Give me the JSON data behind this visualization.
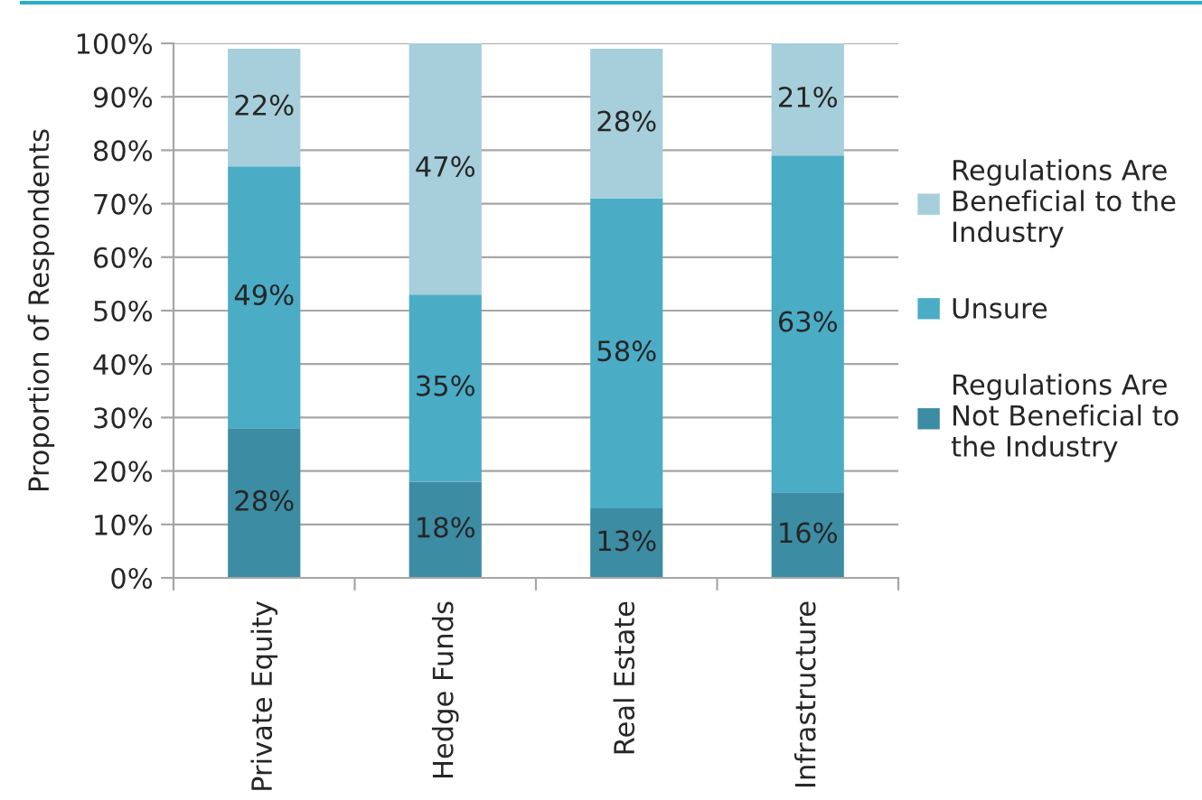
{
  "chart_data": {
    "type": "bar",
    "stacked": true,
    "ylabel": "Proportion of Respondents",
    "categories": [
      "Private Equity",
      "Hedge Funds",
      "Real Estate",
      "Infrastructure"
    ],
    "series": [
      {
        "name": "Regulations Are\nNot Beneficial to\nthe Industry",
        "color": "#3c8ca4",
        "values": [
          28,
          18,
          13,
          16
        ],
        "value_labels": [
          "28%",
          "18%",
          "13%",
          "16%"
        ]
      },
      {
        "name": "Unsure",
        "color": "#4bacc6",
        "values": [
          49,
          35,
          58,
          63
        ],
        "value_labels": [
          "49%",
          "35%",
          "58%",
          "63%"
        ]
      },
      {
        "name": "Regulations Are\nBeneficial to the\nIndustry",
        "color": "#a6cedb",
        "values": [
          22,
          47,
          28,
          21
        ],
        "value_labels": [
          "22%",
          "47%",
          "28%",
          "21%"
        ]
      }
    ],
    "ylim": [
      0,
      100
    ],
    "yticks": [
      {
        "value": 0,
        "label": "0%"
      },
      {
        "value": 10,
        "label": "10%"
      },
      {
        "value": 20,
        "label": "20%"
      },
      {
        "value": 30,
        "label": "30%"
      },
      {
        "value": 40,
        "label": "40%"
      },
      {
        "value": 50,
        "label": "50%"
      },
      {
        "value": 60,
        "label": "60%"
      },
      {
        "value": 70,
        "label": "70%"
      },
      {
        "value": 80,
        "label": "80%"
      },
      {
        "value": 90,
        "label": "90%"
      },
      {
        "value": 100,
        "label": "100%"
      }
    ],
    "grid": "y",
    "legend": "right"
  }
}
